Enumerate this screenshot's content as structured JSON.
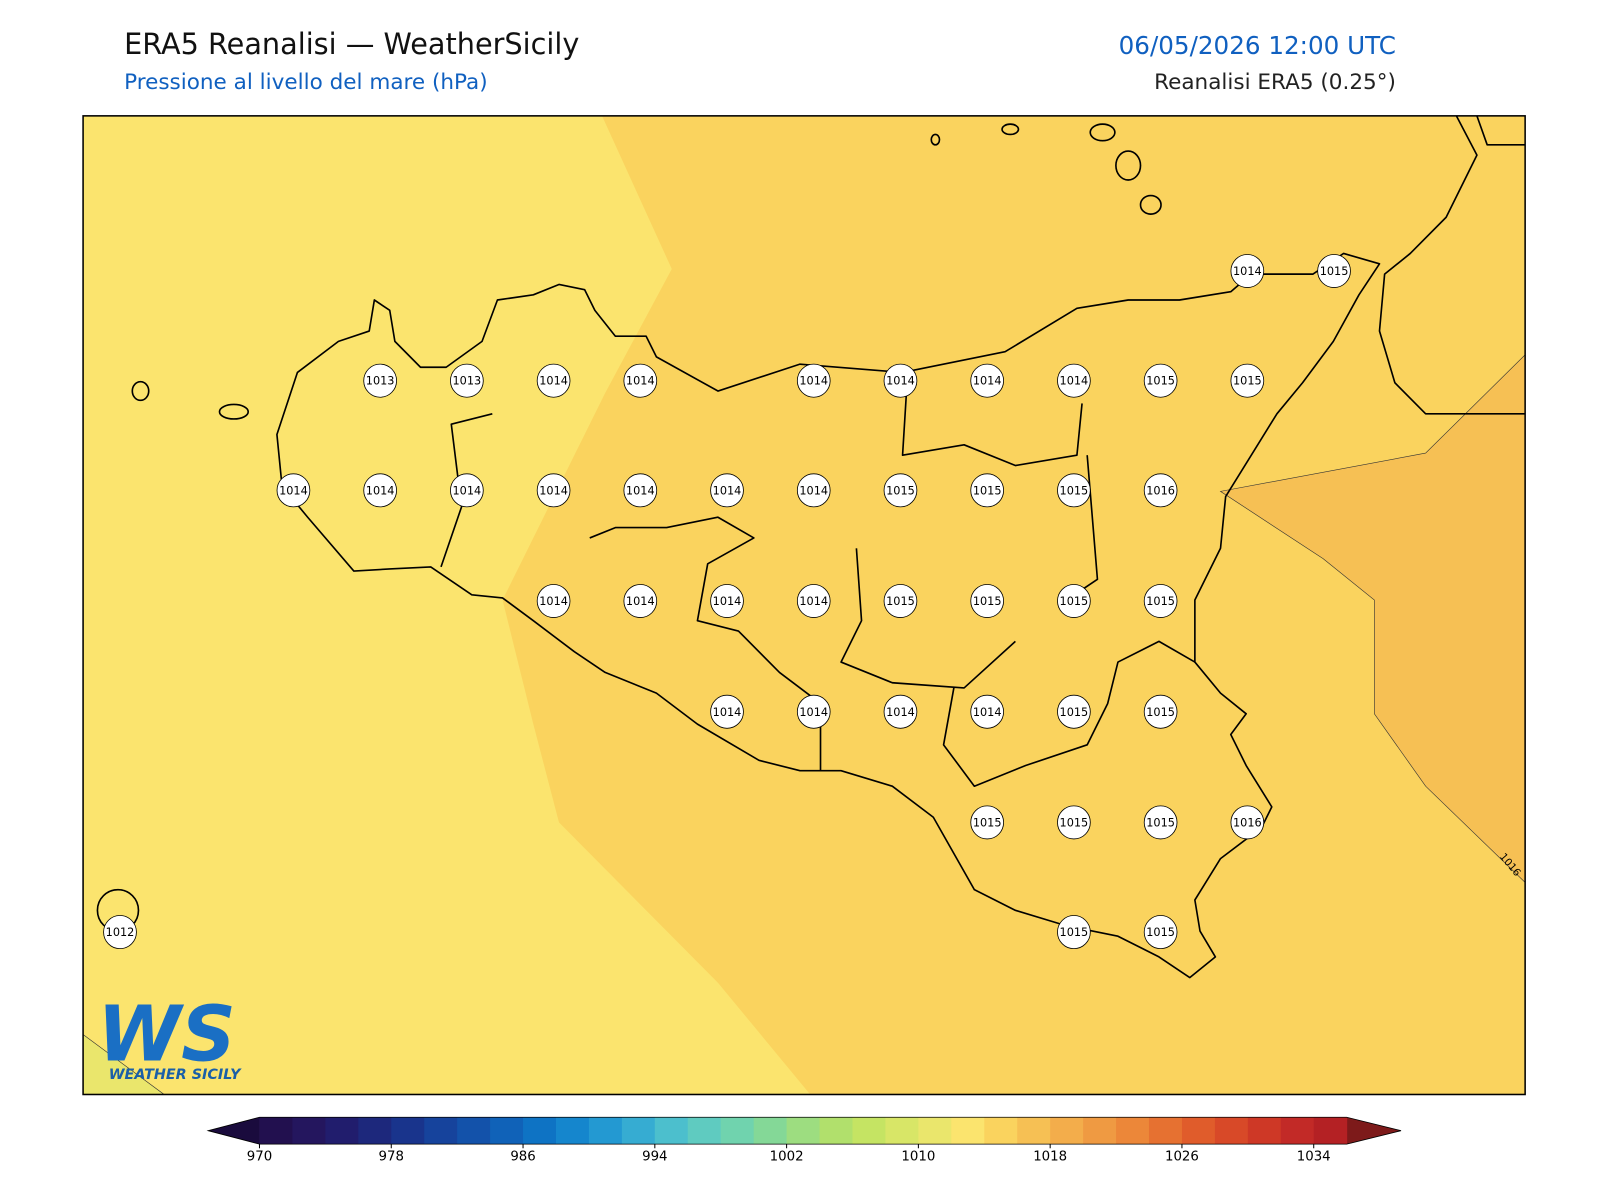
{
  "header": {
    "title": "ERA5 Reanalisi — WeatherSicily",
    "subtitle": "Pressione al livello del mare (hPa)",
    "datetime": "06/05/2026 12:00 UTC",
    "source": "Reanalisi ERA5 (0.25°)"
  },
  "map": {
    "pressure_labels": [
      1014,
      1015,
      1013,
      1013,
      1014,
      1014,
      1014,
      1014,
      1014,
      1014,
      1015,
      1015,
      1014,
      1014,
      1014,
      1014,
      1014,
      1014,
      1014,
      1015,
      1015,
      1015,
      1016,
      1014,
      1014,
      1014,
      1014,
      1015,
      1015,
      1015,
      1015,
      1014,
      1014,
      1014,
      1014,
      1015,
      1015,
      1015,
      1015,
      1015,
      1016,
      1012,
      1015,
      1015
    ],
    "contour_label": "1016"
  },
  "logo": {
    "initials": "WS",
    "name": "WEATHER SICILY"
  },
  "colorbar": {
    "lim": [
      970,
      1036
    ],
    "ticks": [
      970,
      978,
      986,
      994,
      1002,
      1010,
      1018,
      1026,
      1034
    ],
    "colors": [
      "#22104f",
      "#24165e",
      "#211d6d",
      "#1d287c",
      "#19348c",
      "#16439c",
      "#1352aa",
      "#1062b8",
      "#0e73c4",
      "#1586cd",
      "#2399d2",
      "#36acd2",
      "#4cbfcd",
      "#5fcbc0",
      "#70d3ae",
      "#84d897",
      "#9ddd80",
      "#b1e06c",
      "#c5e463",
      "#d8e667",
      "#eae66c",
      "#fbe46e",
      "#fad35e",
      "#f6c054",
      "#f3ad4b",
      "#ef9a42",
      "#ec8739",
      "#e67131",
      "#e05c2b",
      "#d84928",
      "#ce3826",
      "#c22a27",
      "#b42124"
    ],
    "under_color": "#1a0b3d",
    "over_color": "#7d1a1a"
  }
}
